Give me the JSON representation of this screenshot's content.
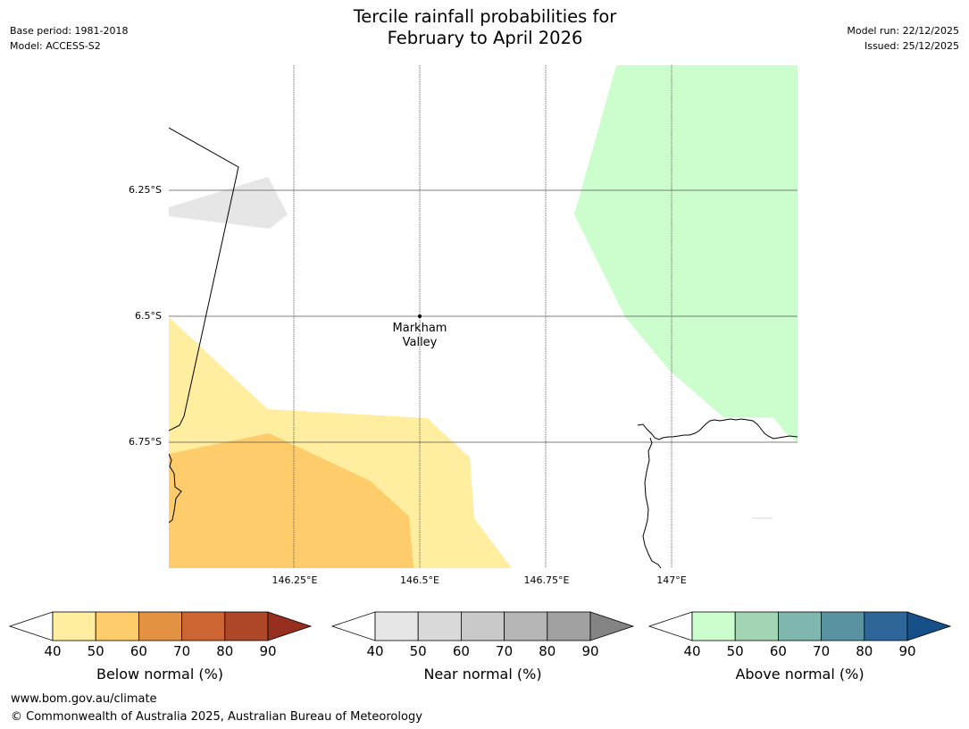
{
  "header": {
    "title_line1": "Tercile rainfall probabilities for",
    "title_line2": "February to April 2026",
    "base_period": "Base period: 1981-2018",
    "model": "Model: ACCESS-S2",
    "model_run": "Model run: 22/12/2025",
    "issued": "Issued: 25/12/2025"
  },
  "map": {
    "latitude_labels": [
      "6.25°S",
      "6.5°S",
      "6.75°S"
    ],
    "longitude_labels": [
      "146.25°E",
      "146.5°E",
      "146.75°E",
      "147°E"
    ],
    "place": {
      "name_line1": "Markham",
      "name_line2": "Valley"
    },
    "colors": {
      "below_40_50": "#ffeda0",
      "below_50_60": "#fecc6a",
      "near_40_50": "#e6e6e6",
      "above_40_50": "#ccfdcc",
      "coast": "#000000",
      "grid": "#555555"
    }
  },
  "colorbars": [
    {
      "id": "below",
      "label": "Below normal (%)",
      "ticks": [
        "40",
        "50",
        "60",
        "70",
        "80",
        "90"
      ],
      "colors": [
        "#ffeda0",
        "#fecc6a",
        "#e39244",
        "#cd6433",
        "#ad4728",
        "#962f20"
      ]
    },
    {
      "id": "near",
      "label": "Near normal (%)",
      "ticks": [
        "40",
        "50",
        "60",
        "70",
        "80",
        "90"
      ],
      "colors": [
        "#e6e6e6",
        "#d9d9d9",
        "#c9c9c9",
        "#b5b5b5",
        "#a1a1a1",
        "#848484"
      ]
    },
    {
      "id": "above",
      "label": "Above normal (%)",
      "ticks": [
        "40",
        "50",
        "60",
        "70",
        "80",
        "90"
      ],
      "colors": [
        "#ccfdcc",
        "#a3d5b5",
        "#7fb7ae",
        "#5a93a0",
        "#2e6699",
        "#174f88"
      ]
    }
  ],
  "footer": {
    "url": "www.bom.gov.au/climate",
    "copyright": "© Commonwealth of Australia 2025, Australian Bureau of Meteorology"
  }
}
